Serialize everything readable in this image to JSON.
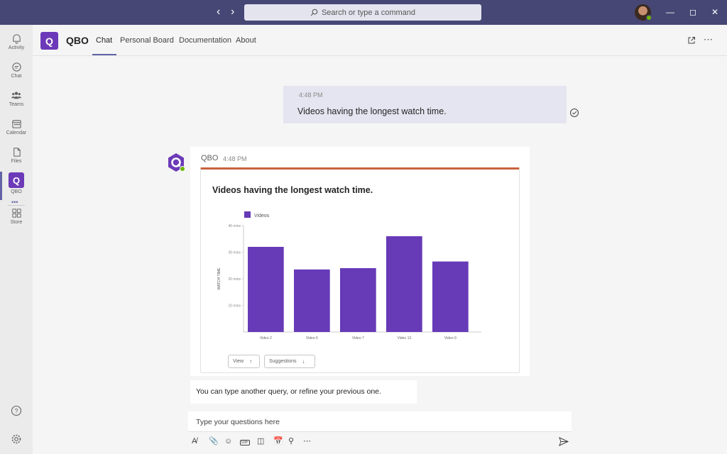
{
  "titlebar": {
    "back_icon": "chevron-left-icon",
    "forward_icon": "chevron-right-icon",
    "search_placeholder": "Search or type a command",
    "window_controls": [
      "minimize-icon",
      "maximize-icon",
      "close-icon"
    ]
  },
  "rail": {
    "items": [
      {
        "label": "Activity",
        "icon": "bell-icon"
      },
      {
        "label": "Chat",
        "icon": "chat-icon"
      },
      {
        "label": "Teams",
        "icon": "teams-icon"
      },
      {
        "label": "Calendar",
        "icon": "calendar-icon"
      },
      {
        "label": "Files",
        "icon": "file-icon"
      },
      {
        "label": "QBO",
        "icon": "qbo-icon"
      },
      {
        "label": "Store",
        "icon": "apps-icon"
      }
    ],
    "more_glyph": "•••"
  },
  "app_header": {
    "app_logo_letter": "Q",
    "app_name": "QBO",
    "tabs": [
      "Chat",
      "Personal Board",
      "Documentation",
      "About"
    ],
    "active_tab": "Chat"
  },
  "conversation": {
    "user_message": {
      "time": "4:48 PM",
      "text": "Videos having the longest watch time."
    },
    "bot_message": {
      "sender": "QBO",
      "time": "4:48 PM",
      "card_title": "Videos having the longest watch time.",
      "buttons": [
        {
          "label": "View",
          "icon": "arrow-up-icon"
        },
        {
          "label": "Suggestions",
          "icon": "arrow-down-icon"
        }
      ]
    },
    "hint_message": "You can type another query, or refine your previous one."
  },
  "compose": {
    "placeholder": "Type your questions here",
    "gif_label": "GIF"
  },
  "colors": {
    "titlebar": "#464775",
    "accent": "#6264a7",
    "bar": "#673ab7",
    "card_border_top": "#c8623d"
  },
  "chart_data": {
    "type": "bar",
    "categories": [
      "Video 2",
      "Video 6",
      "Video 7",
      "Video 13",
      "Video 9"
    ],
    "series": [
      {
        "name": "Videos",
        "values": [
          32,
          23.5,
          24,
          36,
          26.5
        ]
      }
    ],
    "ylabel": "WATCH TIME",
    "yticks": [
      "10 mins",
      "20 mins",
      "30 mins",
      "40 mins"
    ],
    "ylim": [
      0,
      40
    ],
    "legend": "top-left"
  }
}
